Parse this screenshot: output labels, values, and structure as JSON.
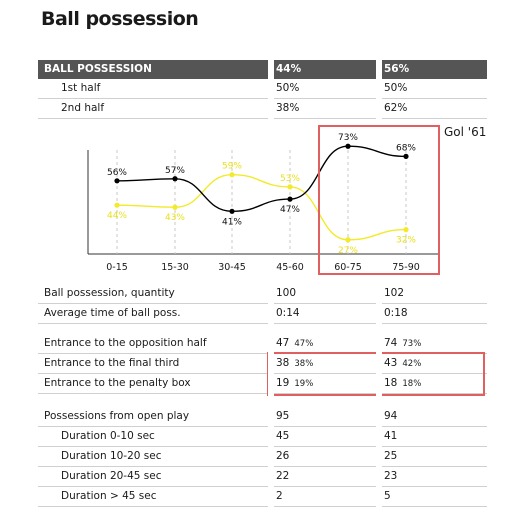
{
  "page_title": "Ball possession",
  "header": {
    "label": "BALL POSSESSION",
    "team1": "44%",
    "team2": "56%"
  },
  "halves": [
    {
      "label": "1st half",
      "v1": "50%",
      "v2": "50%"
    },
    {
      "label": "2nd half",
      "v1": "38%",
      "v2": "62%"
    }
  ],
  "annotation": "Gol '61",
  "colors": {
    "series_black": "#000000",
    "series_yellow": "#f2ea2a",
    "highlight": "#e06060",
    "header_bg": "#555555"
  },
  "chart_data": {
    "type": "line",
    "categories": [
      "0-15",
      "15-30",
      "30-45",
      "45-60",
      "60-75",
      "75-90"
    ],
    "series": [
      {
        "color": "#000000",
        "values": [
          56,
          57,
          41,
          47,
          73,
          68
        ],
        "labels": [
          "56%",
          "57%",
          "41%",
          "47%",
          "73%",
          "68%"
        ]
      },
      {
        "color": "#f2ea2a",
        "values": [
          44,
          43,
          59,
          53,
          27,
          32
        ],
        "labels": [
          "44%",
          "43%",
          "59%",
          "53%",
          "27%",
          "32%"
        ]
      }
    ],
    "ylim": [
      20,
      80
    ]
  },
  "stats_a": [
    {
      "label": "Ball possession, quantity",
      "v1": "100",
      "v2": "102"
    },
    {
      "label": "Average time of ball poss.",
      "v1": "0:14",
      "v2": "0:18"
    }
  ],
  "stats_b": [
    {
      "label": "Entrance to the opposition half",
      "v1": "47",
      "s1": "47%",
      "v2": "74",
      "s2": "73%"
    },
    {
      "label": "Entrance to the final third",
      "v1": "38",
      "s1": "38%",
      "v2": "43",
      "s2": "42%"
    },
    {
      "label": "Entrance to the penalty box",
      "v1": "19",
      "s1": "19%",
      "v2": "18",
      "s2": "18%"
    }
  ],
  "stats_c": [
    {
      "label": "Possessions from open play",
      "v1": "95",
      "v2": "94"
    },
    {
      "label": "Duration  0-10 sec",
      "v1": "45",
      "v2": "41"
    },
    {
      "label": "Duration  10-20 sec",
      "v1": "26",
      "v2": "25"
    },
    {
      "label": "Duration  20-45 sec",
      "v1": "22",
      "v2": "23"
    },
    {
      "label": "Duration  > 45 sec",
      "v1": "2",
      "v2": "5"
    }
  ]
}
